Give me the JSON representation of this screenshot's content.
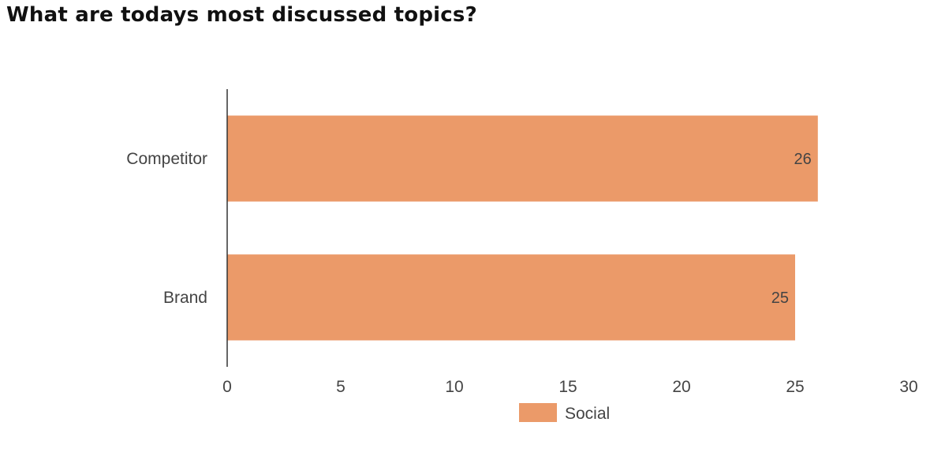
{
  "page": {
    "title": "What are todays most discussed topics?"
  },
  "chart_data": {
    "type": "bar",
    "orientation": "horizontal",
    "title": "What are todays most discussed topics?",
    "categories": [
      "Competitor",
      "Brand"
    ],
    "series": [
      {
        "name": "Social",
        "values": [
          26,
          25
        ],
        "color": "#eb9a69"
      }
    ],
    "xlim": [
      0,
      30
    ],
    "x_ticks": [
      0,
      5,
      10,
      15,
      20,
      25,
      30
    ],
    "xlabel": "",
    "ylabel": "",
    "grid": false,
    "data_labels": true,
    "legend": "bottom-center"
  }
}
